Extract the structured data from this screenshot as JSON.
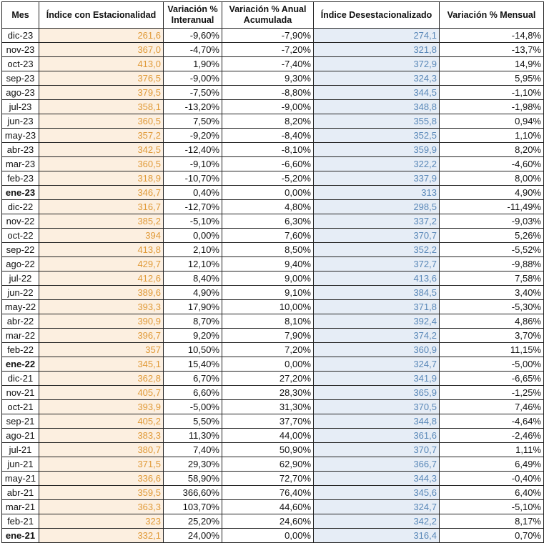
{
  "table": {
    "headers": [
      "Mes",
      "Índice con Estacionalidad",
      "Variación % Interanual",
      "Variación % Anual Acumulada",
      "Índice Desestacionalizado",
      "Variación % Mensual"
    ],
    "rows": [
      [
        "dic-23",
        "261,6",
        "-9,60%",
        "-7,90%",
        "274,1",
        "-14,8%"
      ],
      [
        "nov-23",
        "367,0",
        "-4,70%",
        "-7,20%",
        "321,8",
        "-13,7%"
      ],
      [
        "oct-23",
        "413,0",
        "1,90%",
        "-7,40%",
        "372,9",
        "14,9%"
      ],
      [
        "sep-23",
        "376,5",
        "-9,00%",
        "9,30%",
        "324,3",
        "5,95%"
      ],
      [
        "ago-23",
        "379,5",
        "-7,50%",
        "-8,80%",
        "344,5",
        "-1,10%"
      ],
      [
        "jul-23",
        "358,1",
        "-13,20%",
        "-9,00%",
        "348,8",
        "-1,98%"
      ],
      [
        "jun-23",
        "360,5",
        "7,50%",
        "8,20%",
        "355,8",
        "0,94%"
      ],
      [
        "may-23",
        "357,2",
        "-9,20%",
        "-8,40%",
        "352,5",
        "1,10%"
      ],
      [
        "abr-23",
        "342,5",
        "-12,40%",
        "-8,10%",
        "359,9",
        "8,20%"
      ],
      [
        "mar-23",
        "360,5",
        "-9,10%",
        "-6,60%",
        "322,2",
        "-4,60%"
      ],
      [
        "feb-23",
        "318,9",
        "-10,70%",
        "-5,20%",
        "337,9",
        "8,00%"
      ],
      [
        "ene-23",
        "346,7",
        "0,40%",
        "0,00%",
        "313",
        "4,90%"
      ],
      [
        "dic-22",
        "316,7",
        "-12,70%",
        "4,80%",
        "298,5",
        "-11,49%"
      ],
      [
        "nov-22",
        "385,2",
        "-5,10%",
        "6,30%",
        "337,2",
        "-9,03%"
      ],
      [
        "oct-22",
        "394",
        "0,00%",
        "7,60%",
        "370,7",
        "5,26%"
      ],
      [
        "sep-22",
        "413,8",
        "2,10%",
        "8,50%",
        "352,2",
        "-5,52%"
      ],
      [
        "ago-22",
        "429,7",
        "12,10%",
        "9,40%",
        "372,7",
        "-9,88%"
      ],
      [
        "jul-22",
        "412,6",
        "8,40%",
        "9,00%",
        "413,6",
        "7,58%"
      ],
      [
        "jun-22",
        "389,6",
        "4,90%",
        "9,10%",
        "384,5",
        "3,40%"
      ],
      [
        "may-22",
        "393,3",
        "17,90%",
        "10,00%",
        "371,8",
        "-5,30%"
      ],
      [
        "abr-22",
        "390,9",
        "8,70%",
        "8,10%",
        "392,4",
        "4,86%"
      ],
      [
        "mar-22",
        "396,7",
        "9,20%",
        "7,90%",
        "374,2",
        "3,70%"
      ],
      [
        "feb-22",
        "357",
        "10,50%",
        "7,20%",
        "360,9",
        "11,15%"
      ],
      [
        "ene-22",
        "345,1",
        "15,40%",
        "0,00%",
        "324,7",
        "-5,00%"
      ],
      [
        "dic-21",
        "362,8",
        "6,70%",
        "27,20%",
        "341,9",
        "-6,65%"
      ],
      [
        "nov-21",
        "405,7",
        "6,60%",
        "28,30%",
        "365,9",
        "-1,25%"
      ],
      [
        "oct-21",
        "393,9",
        "-5,00%",
        "31,30%",
        "370,5",
        "7,46%"
      ],
      [
        "sep-21",
        "405,2",
        "5,50%",
        "37,70%",
        "344,8",
        "-4,64%"
      ],
      [
        "ago-21",
        "383,3",
        "11,30%",
        "44,00%",
        "361,6",
        "-2,46%"
      ],
      [
        "jul-21",
        "380,7",
        "7,40%",
        "50,90%",
        "370,7",
        "1,11%"
      ],
      [
        "jun-21",
        "371,5",
        "29,30%",
        "62,90%",
        "366,7",
        "6,49%"
      ],
      [
        "may-21",
        "336,6",
        "58,90%",
        "72,70%",
        "344,3",
        "-0,40%"
      ],
      [
        "abr-21",
        "359,5",
        "366,60%",
        "76,40%",
        "345,6",
        "6,40%"
      ],
      [
        "mar-21",
        "363,3",
        "103,70%",
        "44,60%",
        "324,7",
        "-5,10%"
      ],
      [
        "feb-21",
        "323",
        "25,20%",
        "24,60%",
        "342,2",
        "8,17%"
      ],
      [
        "ene-21",
        "332,1",
        "24,00%",
        "0,00%",
        "316,4",
        "0,70%"
      ]
    ],
    "bold_rows": [
      11,
      23,
      35
    ]
  }
}
